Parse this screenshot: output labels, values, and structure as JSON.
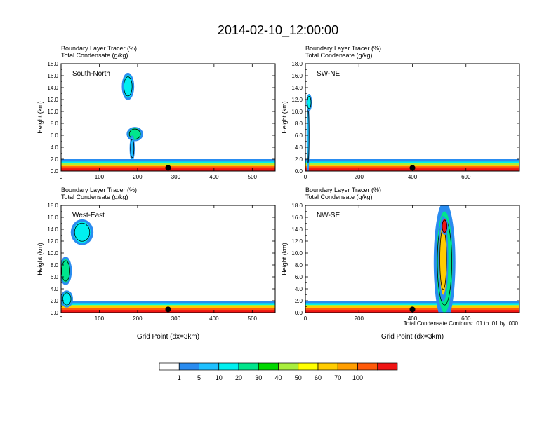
{
  "figure": {
    "title": "2014-02-10_12:00:00",
    "footnote": "Total Condensate Contours: .01 to .01 by .000",
    "colorbar": {
      "labels": [
        "1",
        "5",
        "10",
        "20",
        "30",
        "40",
        "50",
        "60",
        "70",
        "100"
      ],
      "colors": [
        "#ffffff",
        "#2a8cf0",
        "#1ec0ff",
        "#00f0f0",
        "#00e68c",
        "#00d800",
        "#a8ee3c",
        "#ffff00",
        "#ffcc00",
        "#ff9e00",
        "#ff5a0a",
        "#f01414"
      ]
    }
  },
  "chart_data": [
    {
      "type": "heatmap",
      "panel_label": "South-North",
      "header_line1": "Boundary Layer Tracer   (%)",
      "header_line2": "Total Condensate   (g/kg)",
      "ylabel": "Height (km)",
      "xlabel": "",
      "xlim": [
        0,
        560
      ],
      "ylim": [
        0,
        18
      ],
      "xticks": [
        0,
        100,
        200,
        300,
        400,
        500
      ],
      "yticks": [
        "0.0",
        "2.0",
        "4.0",
        "6.0",
        "8.0",
        "10.0",
        "12.0",
        "14.0",
        "16.0",
        "18.0"
      ],
      "marker_x": 280,
      "tracer_features": [
        {
          "x": 175,
          "y": 14.2,
          "rx": 12,
          "ry": 1.9,
          "level": "10-20"
        },
        {
          "x": 193,
          "y": 6.2,
          "rx": 16,
          "ry": 1.0,
          "level": "20-30"
        },
        {
          "x": 186,
          "y": 3.8,
          "rx": 5,
          "ry": 1.8,
          "level": "5-10"
        }
      ]
    },
    {
      "type": "heatmap",
      "panel_label": "SW-NE",
      "header_line1": "Boundary Layer Tracer   (%)",
      "header_line2": "Total Condensate   (g/kg)",
      "ylabel": "Height (km)",
      "xlabel": "",
      "xlim": [
        0,
        800
      ],
      "ylim": [
        0,
        18
      ],
      "xticks": [
        0,
        200,
        400,
        600
      ],
      "yticks": [
        "0.0",
        "2.0",
        "4.0",
        "6.0",
        "8.0",
        "10.0",
        "12.0",
        "14.0",
        "16.0",
        "18.0"
      ],
      "marker_x": 400,
      "tracer_features": [
        {
          "x": 10,
          "y": 6.0,
          "rx": 4,
          "ry": 5.5,
          "level": "5-10"
        },
        {
          "x": 14,
          "y": 11.5,
          "rx": 8,
          "ry": 1.2,
          "level": "10-20"
        }
      ]
    },
    {
      "type": "heatmap",
      "panel_label": "West-East",
      "header_line1": "Boundary Layer Tracer   (%)",
      "header_line2": "Total Condensate   (g/kg)",
      "ylabel": "Height (km)",
      "xlabel": "Grid Point (dx=3km)",
      "xlim": [
        0,
        560
      ],
      "ylim": [
        0,
        18
      ],
      "xticks": [
        0,
        100,
        200,
        300,
        400,
        500
      ],
      "yticks": [
        "0.0",
        "2.0",
        "4.0",
        "6.0",
        "8.0",
        "10.0",
        "12.0",
        "14.0",
        "16.0",
        "18.0"
      ],
      "marker_x": 280,
      "tracer_features": [
        {
          "x": 55,
          "y": 13.5,
          "rx": 22,
          "ry": 1.8,
          "level": "10-20"
        },
        {
          "x": 12,
          "y": 7.0,
          "rx": 12,
          "ry": 2.0,
          "level": "20-30"
        },
        {
          "x": 15,
          "y": 2.3,
          "rx": 12,
          "ry": 1.2,
          "level": "10-20"
        }
      ]
    },
    {
      "type": "heatmap",
      "panel_label": "NW-SE",
      "header_line1": "Boundary Layer Tracer   (%)",
      "header_line2": "Total Condensate   (g/kg)",
      "ylabel": "Height (km)",
      "xlabel": "Grid Point (dx=3km)",
      "xlim": [
        0,
        800
      ],
      "ylim": [
        0,
        18
      ],
      "xticks": [
        0,
        200,
        400,
        600
      ],
      "yticks": [
        "0.0",
        "2.0",
        "4.0",
        "6.0",
        "8.0",
        "10.0",
        "12.0",
        "14.0",
        "16.0",
        "18.0"
      ],
      "marker_x": 400,
      "tracer_features": [
        {
          "x": 520,
          "y": 8.5,
          "rx": 30,
          "ry": 8.5,
          "level": "20-30"
        },
        {
          "x": 515,
          "y": 9.0,
          "rx": 14,
          "ry": 6.0,
          "level": "50-60"
        },
        {
          "x": 520,
          "y": 14.5,
          "rx": 10,
          "ry": 1.2,
          "level": "70-100"
        }
      ]
    }
  ]
}
